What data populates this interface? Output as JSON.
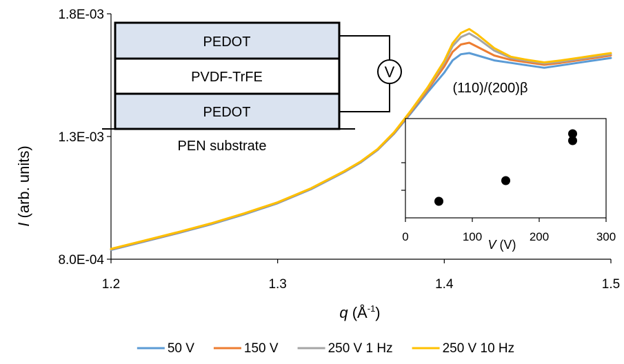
{
  "chart_data": {
    "type": "line",
    "title": "",
    "xlabel": {
      "italic": "q",
      "rest": " (Å",
      "sup": "-1",
      "close": ")"
    },
    "ylabel": {
      "italic": "I",
      "rest": " (arb. units)"
    },
    "xlim": [
      1.2,
      1.5
    ],
    "ylim": [
      0.0008,
      0.0018
    ],
    "x_ticks": [
      1.2,
      1.3,
      1.4,
      1.5
    ],
    "x_tick_labels": [
      "1.2",
      "1.3",
      "1.4",
      "1.5"
    ],
    "y_ticks": [
      0.0008,
      0.0013,
      0.0018
    ],
    "y_tick_labels": [
      "8.0E-04",
      "1.3E-03",
      "1.8E-03"
    ],
    "grid": false,
    "legend_position": "bottom",
    "x": [
      1.2,
      1.22,
      1.24,
      1.26,
      1.28,
      1.3,
      1.32,
      1.34,
      1.35,
      1.36,
      1.37,
      1.38,
      1.39,
      1.4,
      1.405,
      1.41,
      1.415,
      1.42,
      1.43,
      1.44,
      1.45,
      1.46,
      1.47,
      1.48,
      1.49,
      1.5
    ],
    "series": [
      {
        "name": "50 V",
        "color": "#5B9BD5",
        "values": [
          0.000838,
          0.000872,
          0.000906,
          0.000942,
          0.000983,
          0.001028,
          0.001085,
          0.001155,
          0.001195,
          0.001245,
          0.001312,
          0.001395,
          0.00148,
          0.00156,
          0.00161,
          0.001635,
          0.00164,
          0.00163,
          0.00161,
          0.0016,
          0.00159,
          0.00158,
          0.00159,
          0.0016,
          0.00161,
          0.00162
        ]
      },
      {
        "name": "150 V",
        "color": "#ED7D31",
        "values": [
          0.00084,
          0.000874,
          0.000908,
          0.000944,
          0.000985,
          0.00103,
          0.001087,
          0.001157,
          0.001197,
          0.001247,
          0.001315,
          0.0014,
          0.00149,
          0.001585,
          0.001645,
          0.001675,
          0.001682,
          0.001665,
          0.00163,
          0.001612,
          0.001602,
          0.001592,
          0.0016,
          0.00161,
          0.00162,
          0.00163
        ]
      },
      {
        "name": "250 V 1 Hz",
        "color": "#A5A5A5",
        "values": [
          0.000841,
          0.000875,
          0.000909,
          0.000945,
          0.000986,
          0.001031,
          0.001088,
          0.001158,
          0.001198,
          0.001248,
          0.001317,
          0.001404,
          0.001497,
          0.0016,
          0.001668,
          0.001705,
          0.00172,
          0.0017,
          0.00165,
          0.00162,
          0.001608,
          0.001598,
          0.001605,
          0.001615,
          0.001625,
          0.001635
        ]
      },
      {
        "name": "250 V 10 Hz",
        "color": "#FFC000",
        "values": [
          0.000842,
          0.000876,
          0.00091,
          0.000946,
          0.000987,
          0.001032,
          0.001089,
          0.001159,
          0.001199,
          0.001249,
          0.001318,
          0.001406,
          0.0015,
          0.001608,
          0.00168,
          0.001722,
          0.001738,
          0.001715,
          0.00166,
          0.001625,
          0.001612,
          0.001602,
          0.00161,
          0.00162,
          0.00163,
          0.00164
        ]
      }
    ],
    "inset": {
      "type": "scatter",
      "xlabel": {
        "italic": "V",
        "rest": " (V)"
      },
      "xlim": [
        0,
        300
      ],
      "x_ticks": [
        0,
        100,
        200,
        300
      ],
      "x_tick_labels": [
        "0",
        "100",
        "200",
        "300"
      ],
      "ylim": [
        0,
        3.6
      ],
      "y_ticks": [
        1,
        2
      ],
      "points": [
        {
          "x": 50,
          "y": 0.6
        },
        {
          "x": 150,
          "y": 1.35
        },
        {
          "x": 250,
          "y": 2.8
        },
        {
          "x": 250,
          "y": 3.05
        }
      ]
    },
    "annotations": {
      "peak_label": "(110)/(200)β",
      "device_layers": [
        "PEDOT",
        "PVDF-TrFE",
        "PEDOT"
      ],
      "voltmeter_symbol": "V",
      "substrate_label": "PEN substrate"
    }
  }
}
